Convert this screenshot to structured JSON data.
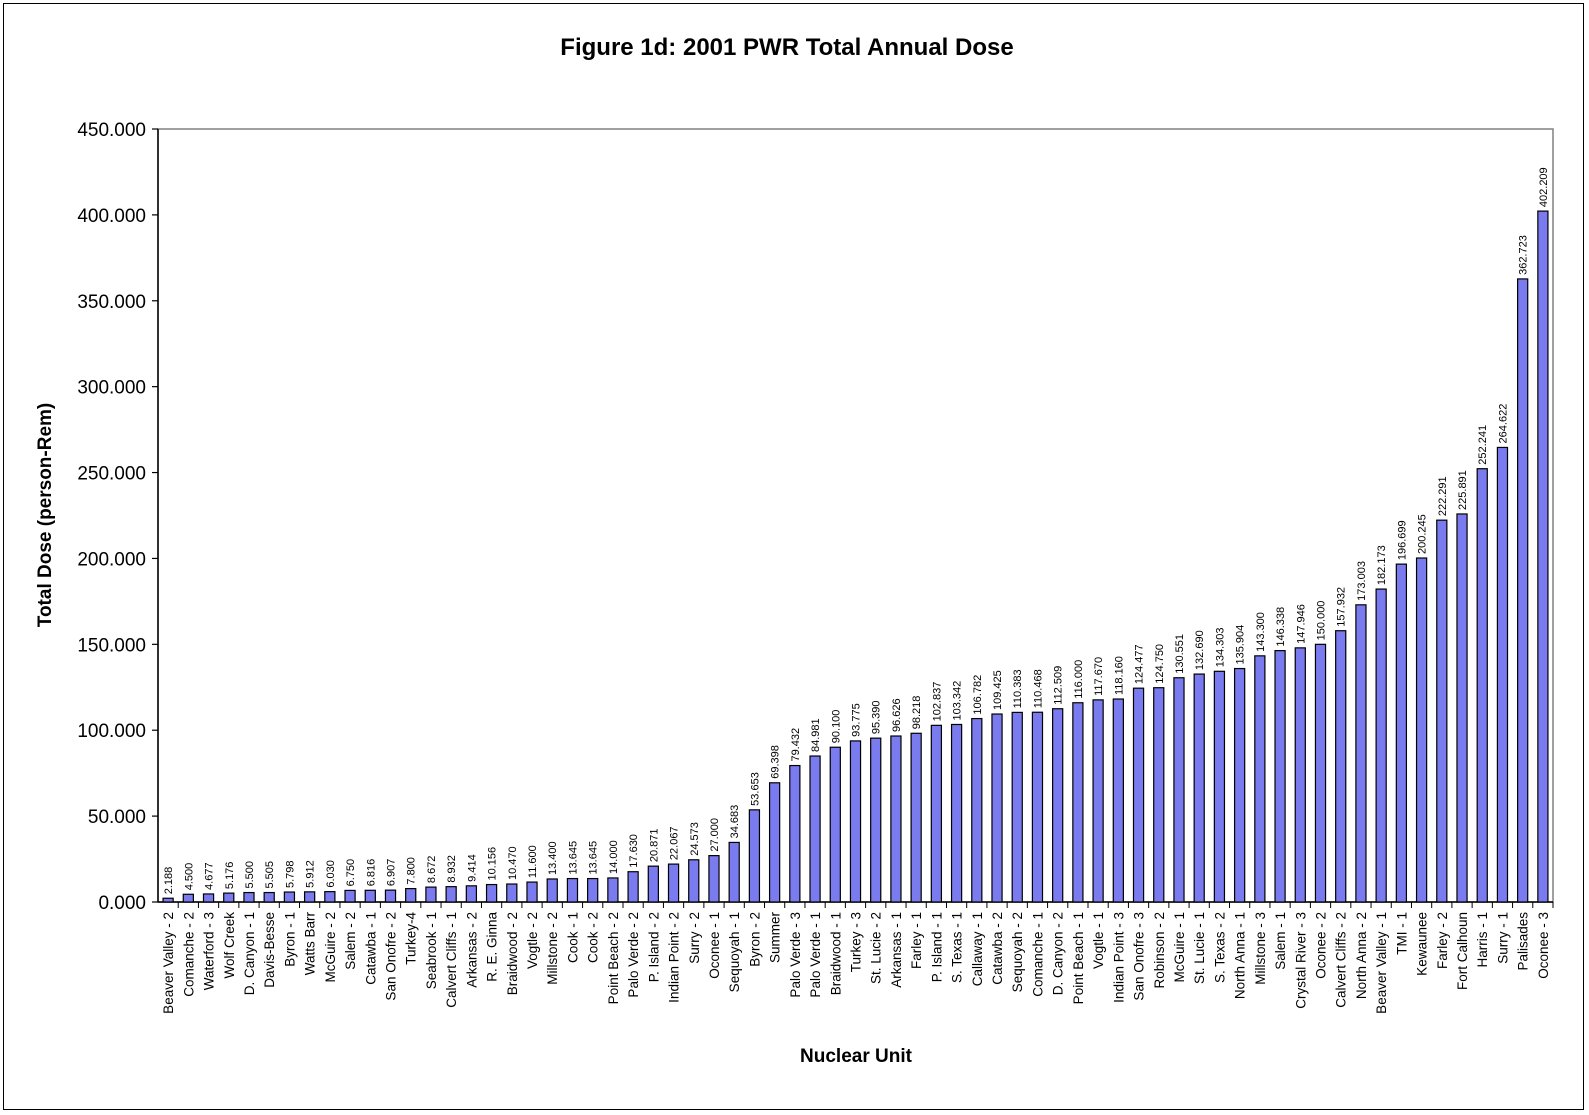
{
  "chart_data": {
    "type": "bar",
    "title": "Figure 1d: 2001 PWR Total Annual Dose",
    "xlabel": "Nuclear Unit",
    "ylabel": "Total Dose (person-Rem)",
    "ylim": [
      0,
      450
    ],
    "yticks": [
      "0.000",
      "50.000",
      "100.000",
      "150.000",
      "200.000",
      "250.000",
      "300.000",
      "350.000",
      "400.000",
      "450.000"
    ],
    "grid": false,
    "legend": "none",
    "bar_color": "#7b7bf0",
    "categories": [
      "Beaver Valley - 2",
      "Comanche - 2",
      "Waterford - 3",
      "Wolf Creek",
      "D. Canyon - 1",
      "Davis-Besse",
      "Byron - 1",
      "Watts Barr",
      "McGuire - 2",
      "Salem - 2",
      "Catawba - 1",
      "San Onofre - 2",
      "Turkey-4",
      "Seabrook - 1",
      "Calvert Cliffs - 1",
      "Arkansas - 2",
      "R. E. Ginna",
      "Braidwood - 2",
      "Vogtle - 2",
      "Millstone - 2",
      "Cook - 1",
      "Cook - 2",
      "Point Beach - 2",
      "Palo Verde - 2",
      "P. Island - 2",
      "Indian Point - 2",
      "Surry - 2",
      "Oconee - 1",
      "Sequoyah - 1",
      "Byron - 2",
      "Summer",
      "Palo Verde - 3",
      "Palo Verde - 1",
      "Braidwood - 1",
      "Turkey - 3",
      "St. Lucie - 2",
      "Arkansas - 1",
      "Farley - 1",
      "P. Island - 1",
      "S. Texas - 1",
      "Callaway - 1",
      "Catawba - 2",
      "Sequoyah - 2",
      "Comanche - 1",
      "D. Canyon - 2",
      "Point Beach - 1",
      "Vogtle - 1",
      "Indian Point - 3",
      "San Onofre - 3",
      "Robinson - 2",
      "McGuire - 1",
      "St. Lucie - 1",
      "S. Texas - 2",
      "North Anna - 1",
      "Millstone - 3",
      "Salem - 1",
      "Crystal River - 3",
      "Oconee - 2",
      "Calvert Cliffs - 2",
      "North Anna - 2",
      "Beaver Valley - 1",
      "TMI - 1",
      "Kewaunee",
      "Farley - 2",
      "Fort Calhoun",
      "Harris - 1",
      "Surry - 1",
      "Palisades",
      "Oconee - 3"
    ],
    "values": [
      2.188,
      4.5,
      4.677,
      5.176,
      5.5,
      5.505,
      5.798,
      5.912,
      6.03,
      6.75,
      6.816,
      6.907,
      7.8,
      8.672,
      8.932,
      9.414,
      10.156,
      10.47,
      11.6,
      13.4,
      13.645,
      13.645,
      14.0,
      17.63,
      20.871,
      22.067,
      24.573,
      27.0,
      34.683,
      53.653,
      69.398,
      79.432,
      84.981,
      90.1,
      93.775,
      95.39,
      96.626,
      98.218,
      102.837,
      103.342,
      106.782,
      109.425,
      110.383,
      110.468,
      112.509,
      116.0,
      117.67,
      118.16,
      124.477,
      124.75,
      130.551,
      132.69,
      134.303,
      135.904,
      143.3,
      146.338,
      147.946,
      150.0,
      157.932,
      173.003,
      182.173,
      196.699,
      200.245,
      222.291,
      225.891,
      252.241,
      264.622,
      362.723,
      402.209
    ],
    "data_labels": [
      "2.188",
      "4.500",
      "4.677",
      "5.176",
      "5.500",
      "5.505",
      "5.798",
      "5.912",
      "6.030",
      "6.750",
      "6.816",
      "6.907",
      "7.800",
      "8.672",
      "8.932",
      "9.414",
      "10.156",
      "10.470",
      "11.600",
      "13.400",
      "13.645",
      "13.645",
      "14.000",
      "17.630",
      "20.871",
      "22.067",
      "24.573",
      "27.000",
      "34.683",
      "53.653",
      "69.398",
      "79.432",
      "84.981",
      "90.100",
      "93.775",
      "95.390",
      "96.626",
      "98.218",
      "102.837",
      "103.342",
      "106.782",
      "109.425",
      "110.383",
      "110.468",
      "112.509",
      "116.000",
      "117.670",
      "118.160",
      "124.477",
      "124.750",
      "130.551",
      "132.690",
      "134.303",
      "135.904",
      "143.300",
      "146.338",
      "147.946",
      "150.000",
      "157.932",
      "173.003",
      "182.173",
      "196.699",
      "200.245",
      "222.291",
      "225.891",
      "252.241",
      "264.622",
      "362.723",
      "402.209"
    ]
  }
}
